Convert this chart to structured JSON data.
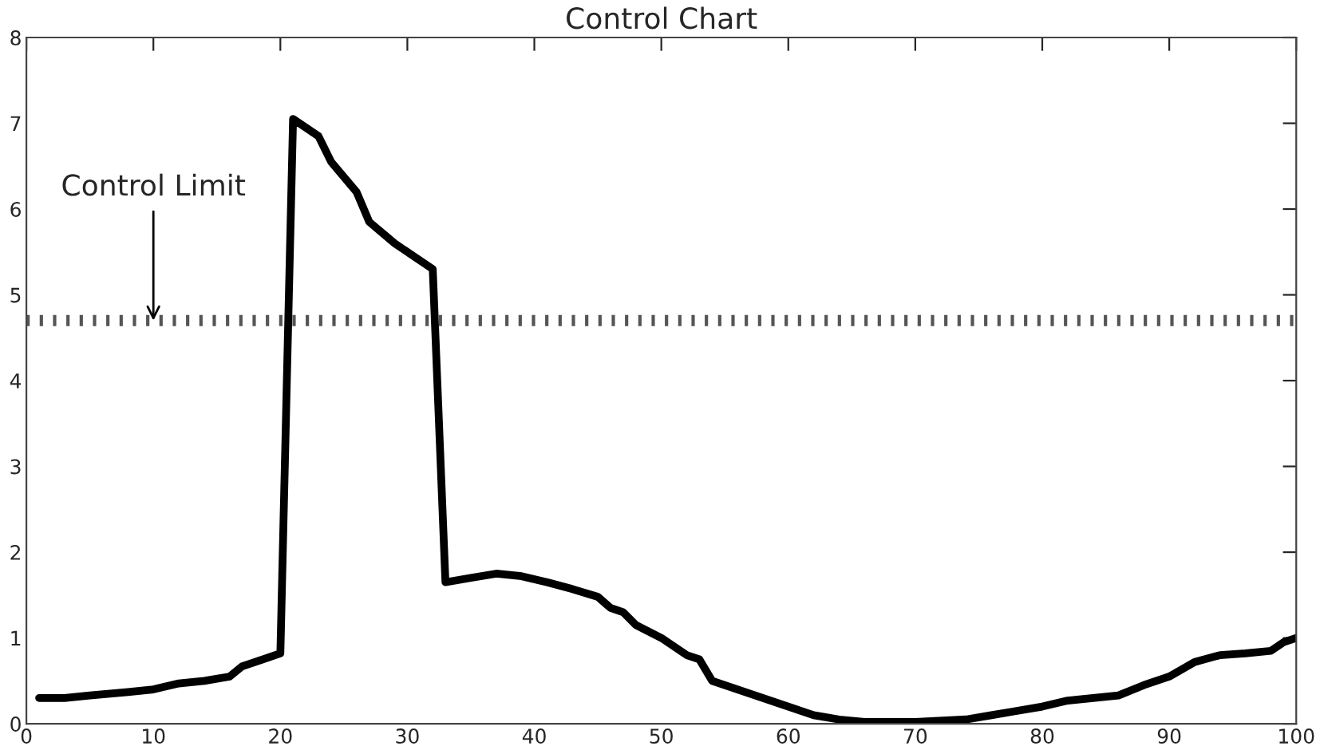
{
  "chart_data": {
    "type": "line",
    "title": "Control Chart",
    "x": [
      1,
      3,
      5,
      8,
      10,
      12,
      14,
      16,
      17,
      19,
      20,
      21,
      23,
      24,
      26,
      27,
      29,
      31,
      32,
      33,
      35,
      37,
      39,
      41,
      43,
      45,
      46,
      47,
      48,
      50,
      52,
      53,
      54,
      56,
      58,
      60,
      62,
      64,
      66,
      70,
      74,
      76,
      78,
      80,
      82,
      84,
      86,
      88,
      90,
      92,
      94,
      96,
      98,
      99,
      100
    ],
    "series": [
      {
        "color": "#000000",
        "values": [
          0.3,
          0.3,
          0.33,
          0.37,
          0.4,
          0.47,
          0.5,
          0.55,
          0.67,
          0.77,
          0.82,
          7.05,
          6.85,
          6.55,
          6.2,
          5.85,
          5.6,
          5.4,
          5.3,
          1.65,
          1.7,
          1.75,
          1.72,
          1.65,
          1.57,
          1.48,
          1.35,
          1.3,
          1.15,
          1.0,
          0.8,
          0.75,
          0.5,
          0.4,
          0.3,
          0.2,
          0.1,
          0.05,
          0.02,
          0.02,
          0.05,
          0.1,
          0.15,
          0.2,
          0.27,
          0.3,
          0.33,
          0.45,
          0.55,
          0.72,
          0.8,
          0.82,
          0.85,
          0.95,
          1.0
        ]
      }
    ],
    "xlim": [
      0,
      100
    ],
    "xticks": [
      0,
      10,
      20,
      30,
      40,
      50,
      60,
      70,
      80,
      90,
      100
    ],
    "ylim": [
      0,
      8
    ],
    "yticks": [
      0,
      1,
      2,
      3,
      4,
      5,
      6,
      7,
      8
    ],
    "ref_lines": [
      {
        "axis": "y",
        "value": 4.7,
        "color": "#555555",
        "line_style": "dotted"
      }
    ],
    "annotations": [
      {
        "text": "Control Limit",
        "x": 10,
        "y": 4.7
      }
    ],
    "grid": false,
    "legend": false,
    "marker": "none",
    "line_style": "solid"
  }
}
